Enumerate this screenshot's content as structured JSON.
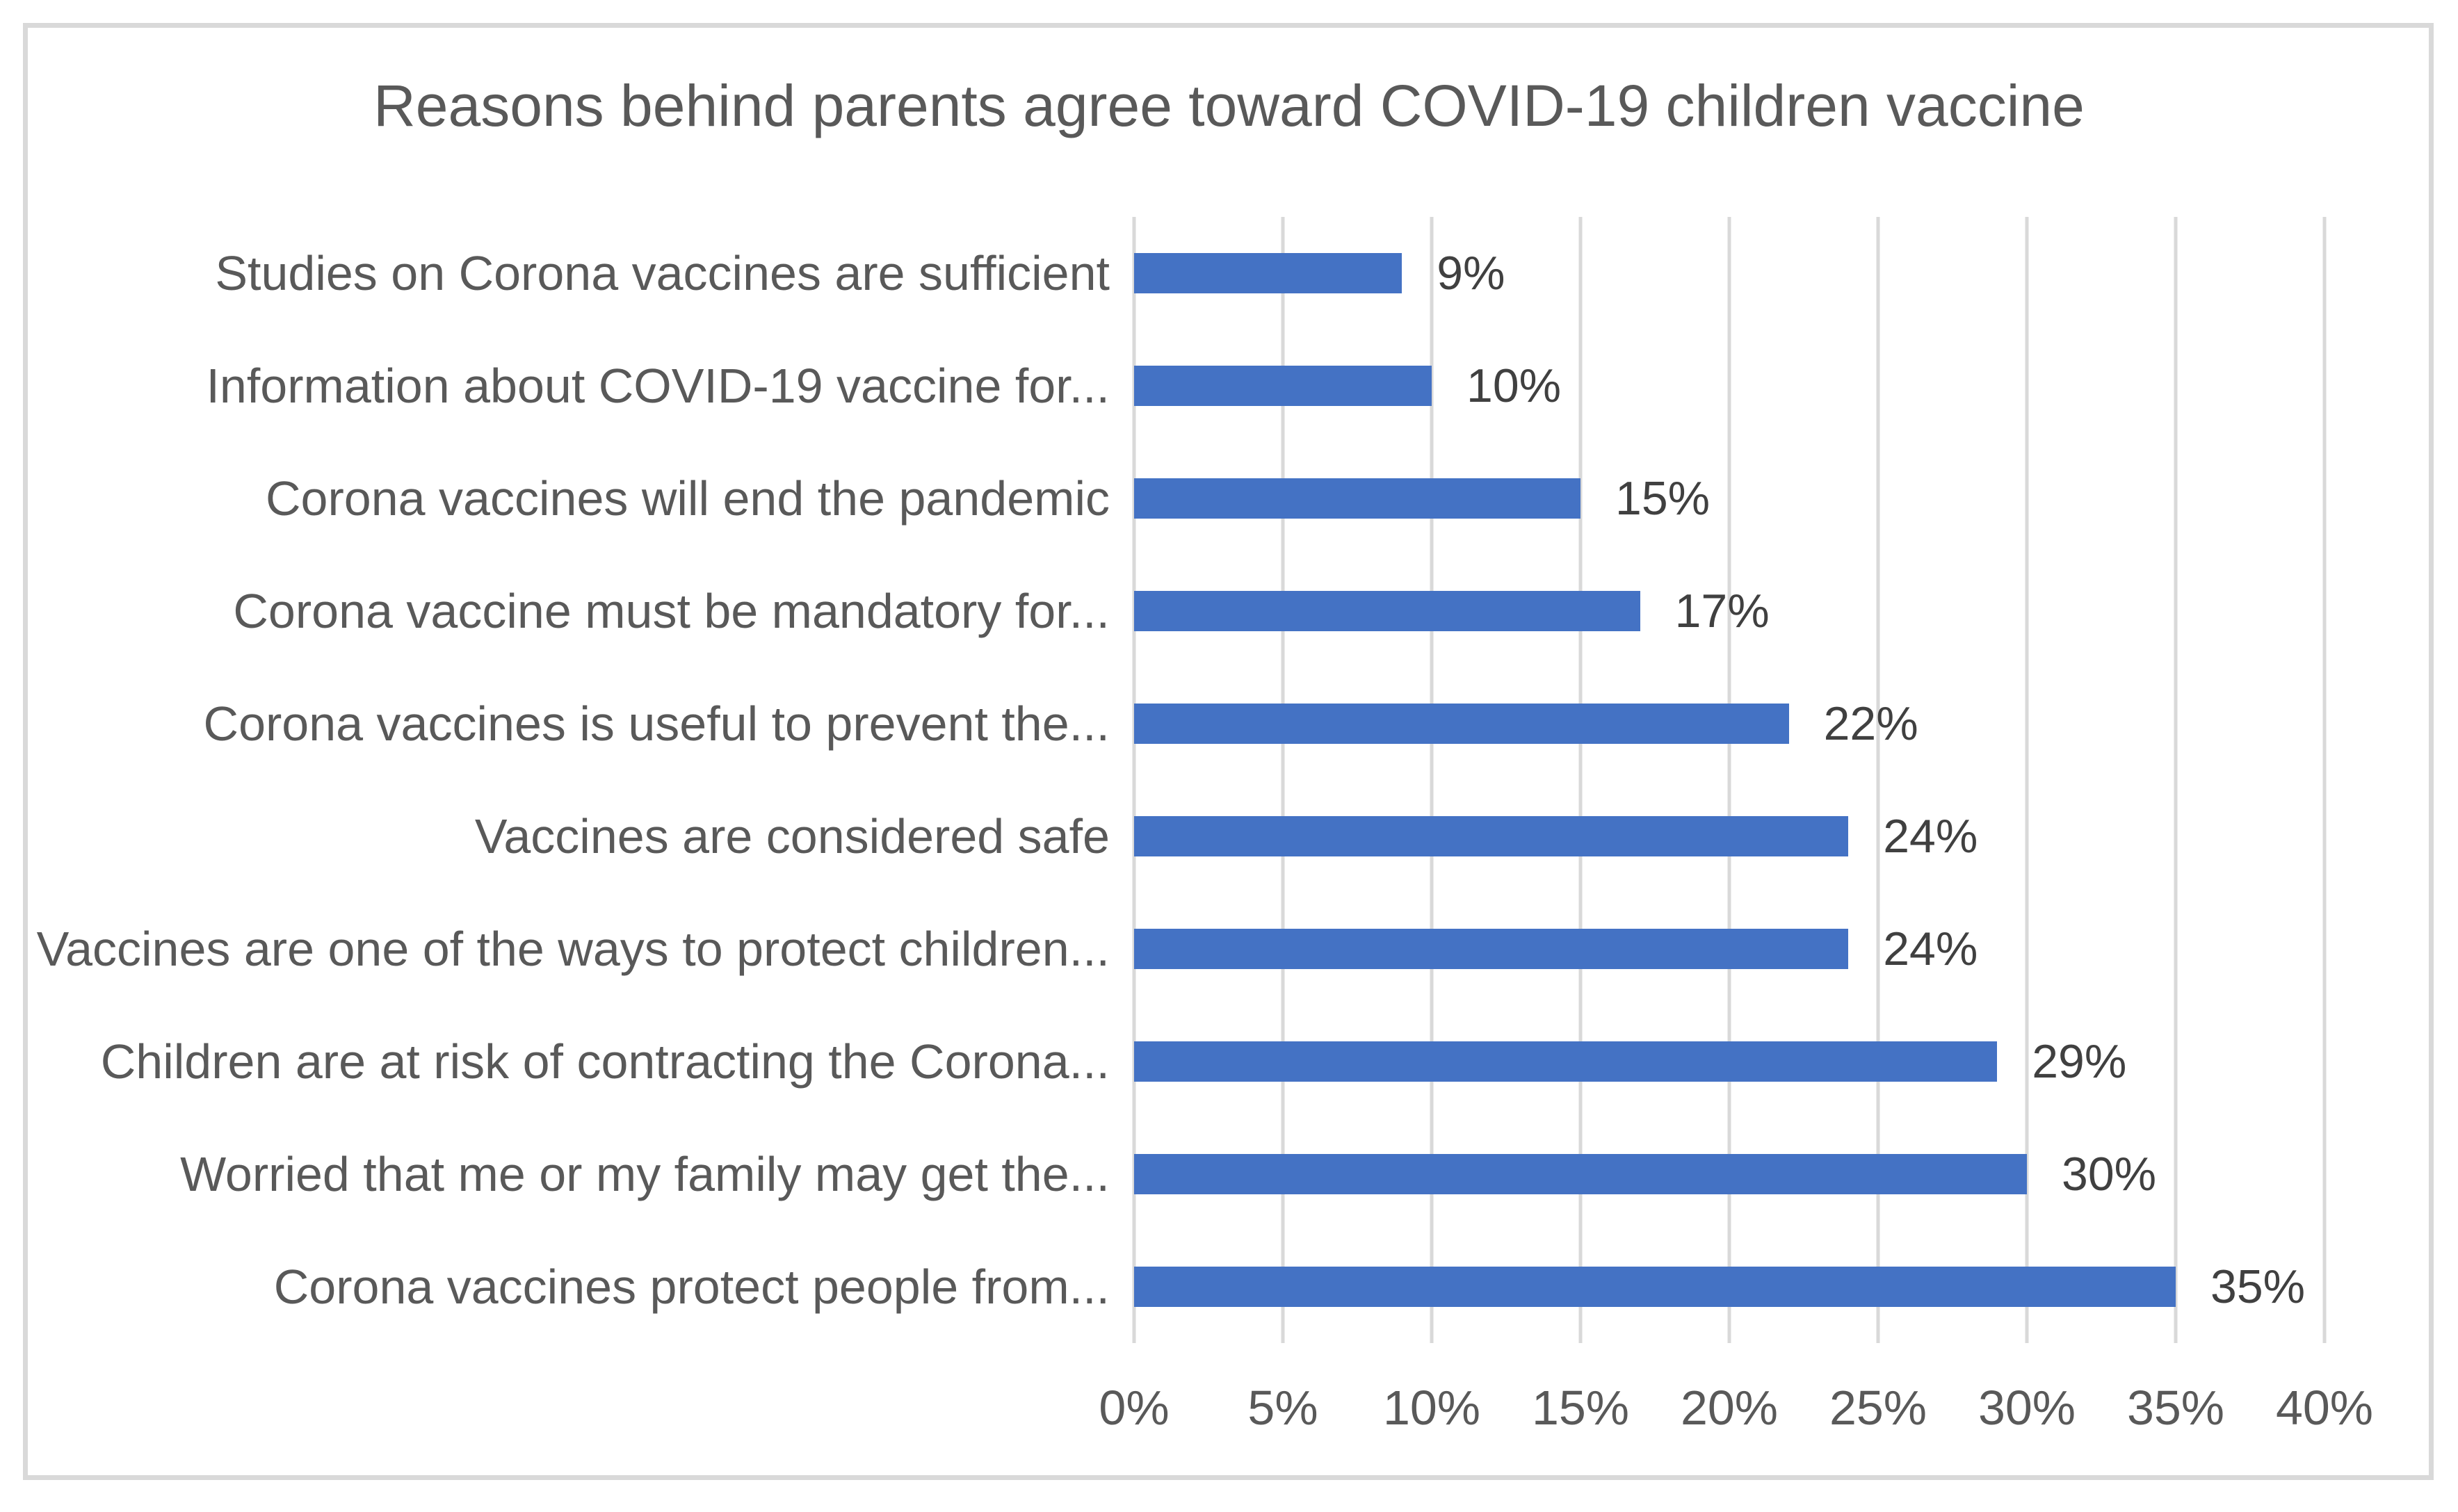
{
  "chart_data": {
    "type": "bar",
    "orientation": "horizontal",
    "title": "Reasons behind parents agree toward COVID-19 children vaccine",
    "categories": [
      "Studies on Corona vaccines are sufficient",
      "Information about COVID-19 vaccine for...",
      "Corona vaccines will end the pandemic",
      "Corona vaccine must be mandatory for...",
      "Corona vaccines is useful to prevent the...",
      "Vaccines are considered safe",
      "Vaccines are one of the ways to protect children...",
      "Children are at risk of contracting the Corona...",
      "Worried that me or my family may get the...",
      "Corona vaccines protect people from..."
    ],
    "values": [
      9,
      10,
      15,
      17,
      22,
      24,
      24,
      29,
      30,
      35
    ],
    "labels": [
      "9%",
      "10%",
      "15%",
      "17%",
      "22%",
      "24%",
      "24%",
      "29%",
      "30%",
      "35%"
    ],
    "x_tick_labels": [
      "0%",
      "5%",
      "10%",
      "15%",
      "20%",
      "25%",
      "30%",
      "35%",
      "40%"
    ],
    "xlim": [
      0,
      40
    ],
    "xlabel": "",
    "ylabel": "",
    "grid": "vertical",
    "legend": "none"
  },
  "colors": {
    "background": "#FFFFFF",
    "bar": "#4472C4",
    "gridline": "#D9D9D9",
    "frame_border": "#D9D9D9",
    "title_text": "#595959",
    "category_text": "#595959",
    "data_label_text": "#404040",
    "axis_text": "#595959"
  }
}
